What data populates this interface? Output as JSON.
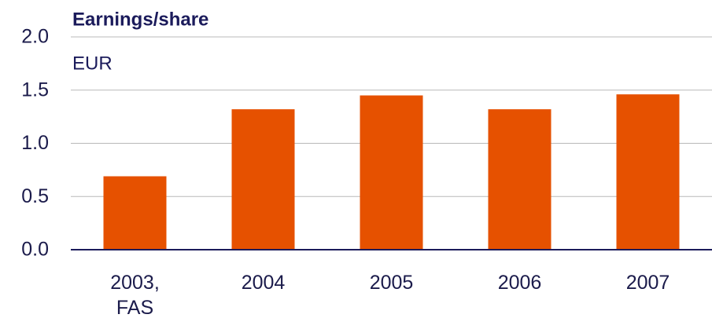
{
  "chart_data": {
    "type": "bar",
    "title": "Earnings/share",
    "subtitle": "EUR",
    "categories": [
      "2003, FAS",
      "2004",
      "2005",
      "2006",
      "2007"
    ],
    "values": [
      0.69,
      1.32,
      1.45,
      1.32,
      1.46
    ],
    "color": "#e65100",
    "ylim": [
      0,
      2
    ],
    "yticks": [
      {
        "value": 0,
        "label": "0.0"
      },
      0.5,
      {
        "value": 1,
        "label": "1.0"
      },
      1.5,
      {
        "value": 2,
        "label": "2.0"
      }
    ],
    "grid": true
  }
}
